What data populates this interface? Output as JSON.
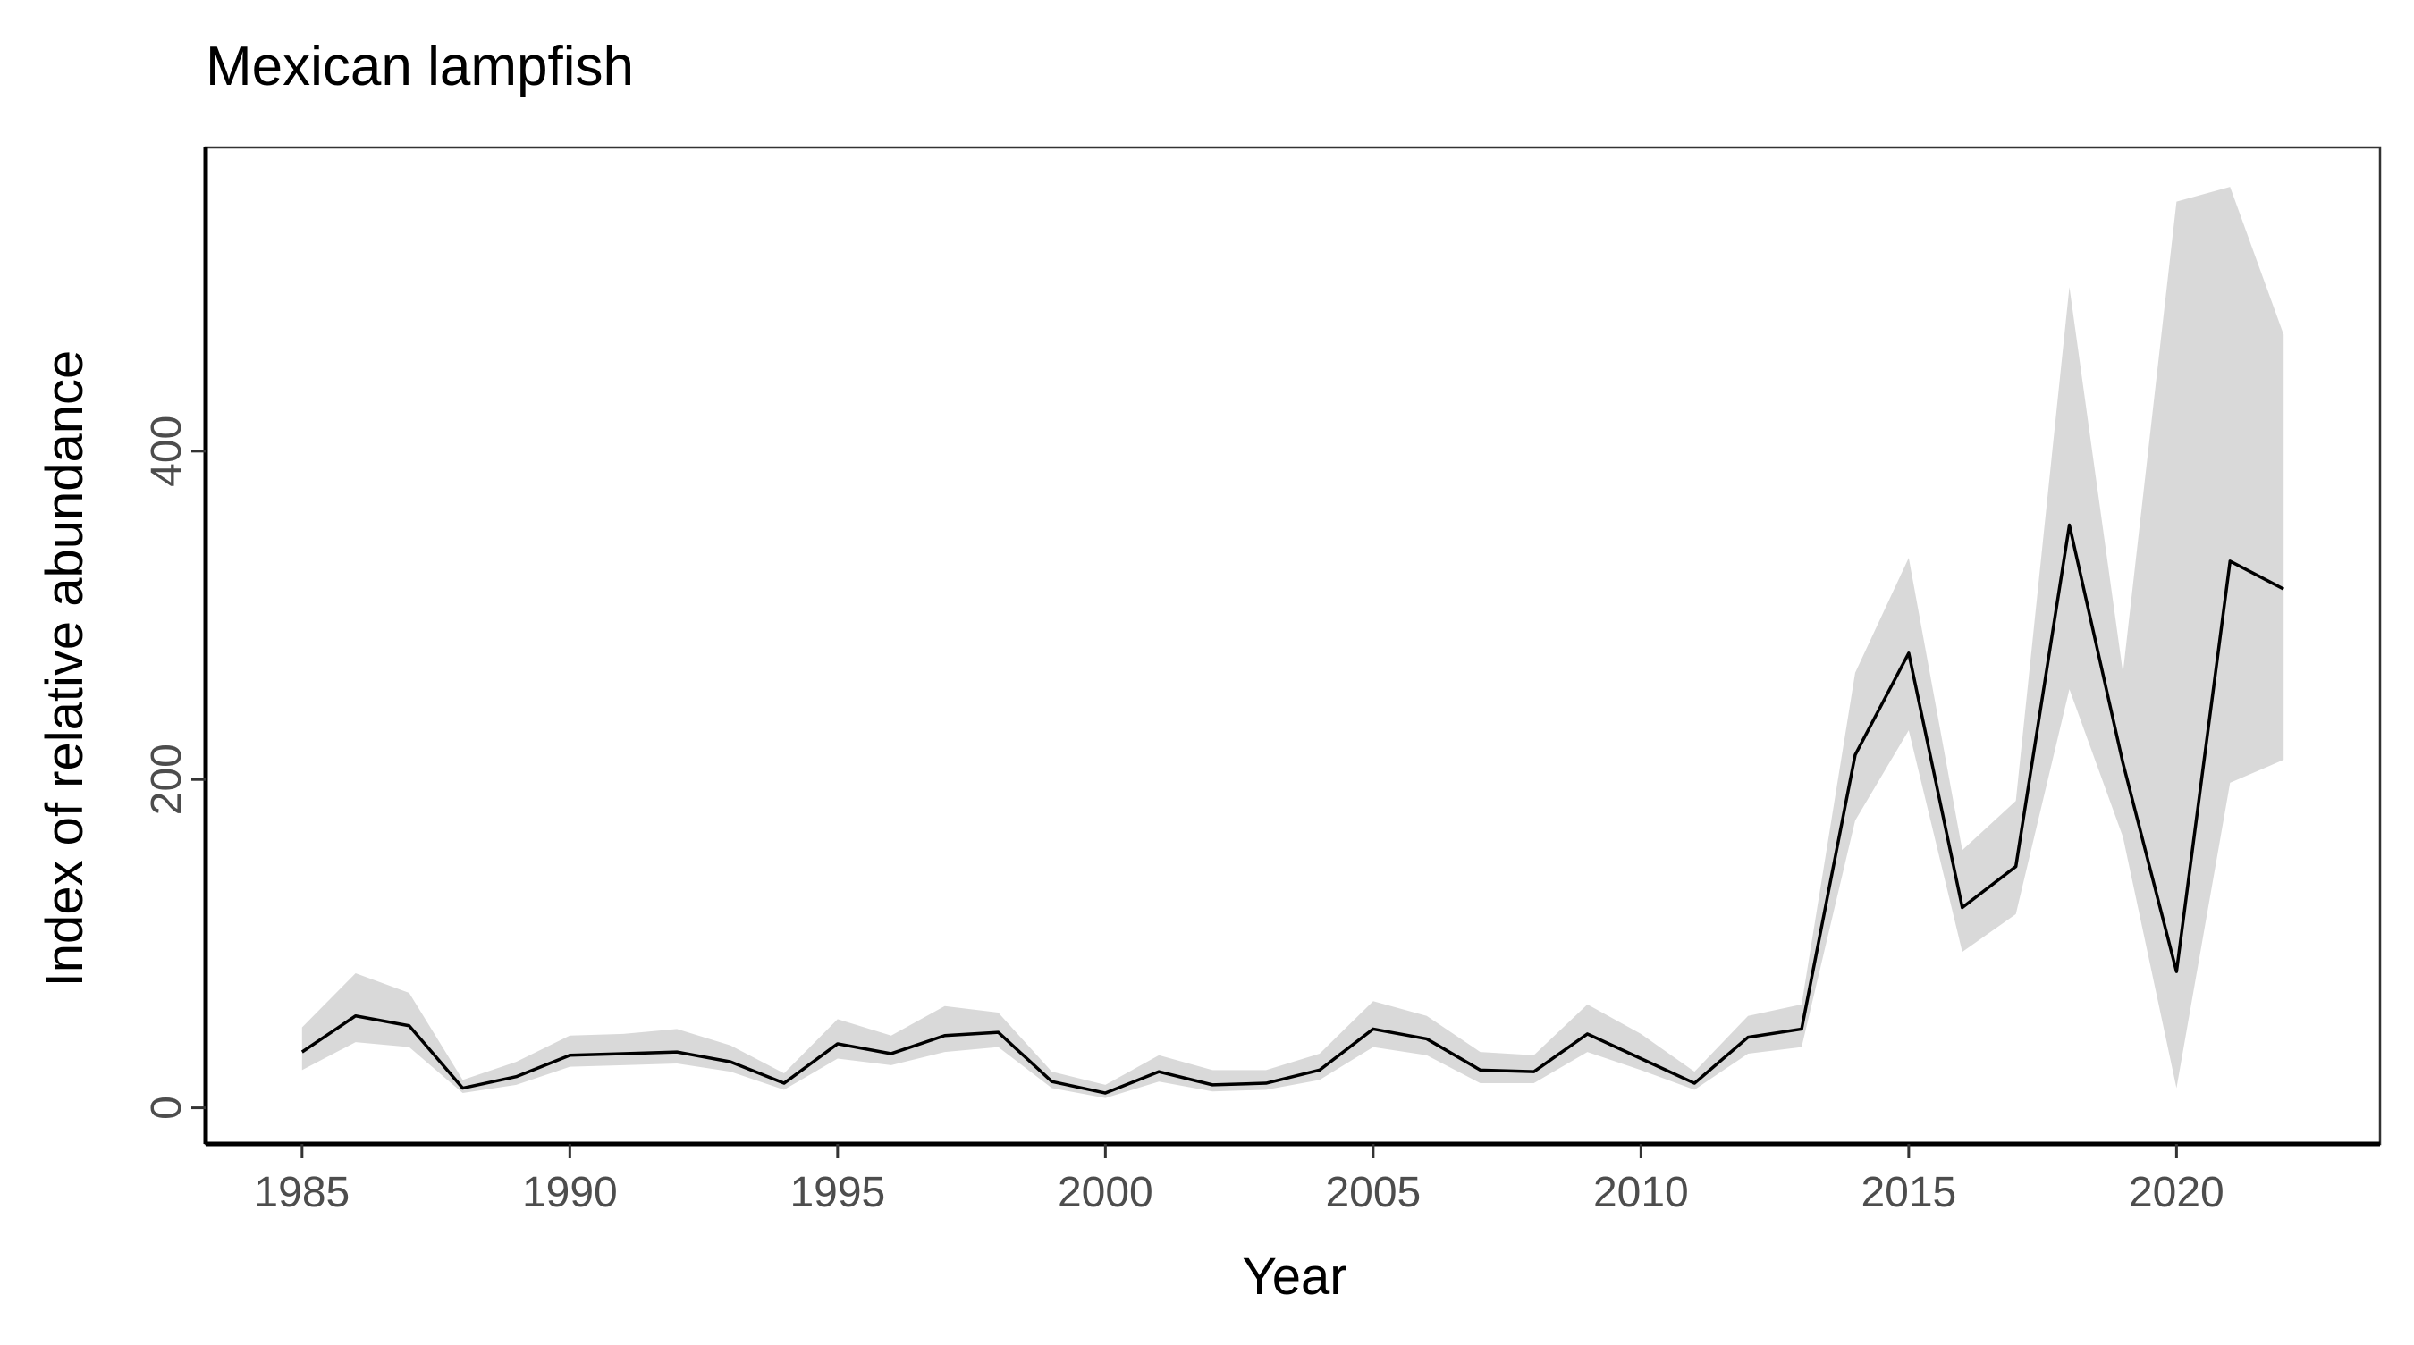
{
  "chart_data": {
    "type": "line",
    "title": "Mexican lampfish",
    "xlabel": "Year",
    "ylabel": "Index of relative abundance",
    "xlim": [
      1983.2,
      2023.8
    ],
    "ylim": [
      -22,
      585
    ],
    "x_ticks": [
      1985,
      1990,
      1995,
      2000,
      2005,
      2010,
      2015,
      2020
    ],
    "y_ticks": [
      0,
      200,
      400
    ],
    "grid": false,
    "legend": "none",
    "series": [
      {
        "x": [
          1985,
          1986,
          1987,
          1988,
          1989,
          1990,
          1991,
          1992,
          1993,
          1994,
          1995,
          1996,
          1997,
          1998,
          1999,
          2000,
          2001,
          2002,
          2003,
          2004,
          2005,
          2006,
          2007,
          2008,
          2009,
          2010,
          2011,
          2012,
          2013,
          2014,
          2015,
          2016,
          2017,
          2018,
          2019,
          2020,
          2021,
          2022
        ],
        "y": [
          34,
          56,
          50,
          12,
          19,
          32,
          33,
          34,
          28,
          15,
          39,
          33,
          44,
          46,
          16,
          9,
          22,
          14,
          15,
          23,
          48,
          42,
          23,
          22,
          45,
          30,
          15,
          43,
          48,
          215,
          277,
          122,
          147,
          355,
          210,
          83,
          333,
          316
        ],
        "lower": [
          23,
          40,
          37,
          9,
          14,
          25,
          26,
          27,
          22,
          11,
          30,
          26,
          34,
          37,
          12,
          6,
          16,
          10,
          11,
          17,
          37,
          32,
          15,
          15,
          34,
          23,
          11,
          33,
          37,
          175,
          230,
          95,
          118,
          255,
          165,
          12,
          198,
          212
        ],
        "upper": [
          49,
          82,
          70,
          17,
          28,
          44,
          45,
          48,
          38,
          21,
          54,
          44,
          62,
          58,
          22,
          14,
          32,
          23,
          23,
          33,
          65,
          56,
          34,
          32,
          63,
          45,
          22,
          56,
          63,
          265,
          335,
          157,
          187,
          500,
          265,
          552,
          561,
          471
        ]
      }
    ],
    "colors": {
      "line": "#000000",
      "ribbon": "#d9d9d9",
      "axis": "#000000",
      "tick_label": "#4d4d4d"
    }
  }
}
